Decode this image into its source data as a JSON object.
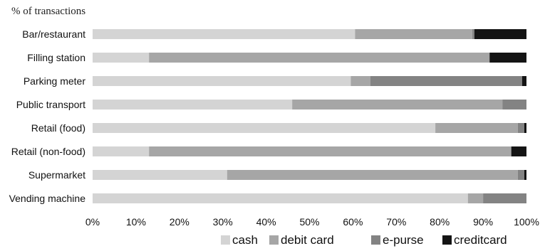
{
  "chart_data": {
    "type": "bar",
    "orientation": "horizontal",
    "stacked": true,
    "ylabel_top": "% of transactions",
    "categories": [
      "Bar/restaurant",
      "Filling station",
      "Parking meter",
      "Public transport",
      "Retail (food)",
      "Retail (non-food)",
      "Supermarket",
      "Vending machine"
    ],
    "series": [
      {
        "name": "cash",
        "color": "#d4d4d4",
        "values": [
          60.5,
          13,
          59.5,
          46,
          79,
          13,
          31,
          86.5
        ]
      },
      {
        "name": "debit card",
        "color": "#a6a6a6",
        "values": [
          27,
          78.5,
          4.5,
          48.5,
          19,
          83.5,
          67,
          3.5
        ]
      },
      {
        "name": "e-purse",
        "color": "#838383",
        "values": [
          0.5,
          0,
          35,
          5.5,
          1.5,
          0,
          1.5,
          10
        ]
      },
      {
        "name": "creditcard",
        "color": "#141414",
        "values": [
          12,
          8.5,
          1,
          0,
          0.5,
          3.5,
          0.5,
          0
        ]
      }
    ],
    "xlim": [
      0,
      100
    ],
    "xticks": [
      "0%",
      "10%",
      "20%",
      "30%",
      "40%",
      "50%",
      "60%",
      "70%",
      "80%",
      "90%",
      "100%"
    ],
    "grid": false,
    "legend": "bottom"
  }
}
